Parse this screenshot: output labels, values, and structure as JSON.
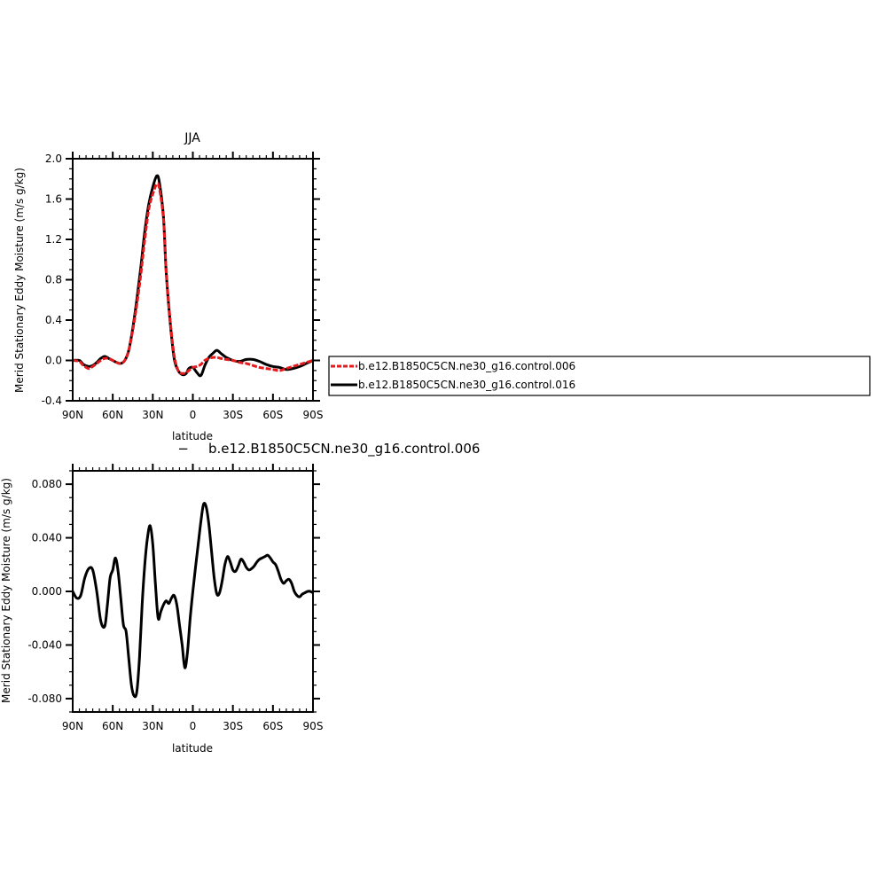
{
  "colors": {
    "red_series": "#e41a1c",
    "black_series": "#000000",
    "background": "#ffffff"
  },
  "chart_data": [
    {
      "type": "line",
      "title": "JJA",
      "xlabel": "latitude",
      "ylabel": "Merid Stationary Eddy Moisture (m/s g/kg)",
      "xlim": [
        90,
        -90
      ],
      "ylim": [
        -0.4,
        2.0
      ],
      "x_ticks": [
        90,
        60,
        30,
        0,
        -30,
        -60,
        -90
      ],
      "x_tick_labels": [
        "90N",
        "60N",
        "30N",
        "0",
        "30S",
        "60S",
        "90S"
      ],
      "y_ticks": [
        -0.4,
        0.0,
        0.4,
        0.8,
        1.2,
        1.6,
        2.0
      ],
      "y_tick_labels": [
        "-0.4",
        "0.0",
        "0.4",
        "0.8",
        "1.2",
        "1.6",
        "2.0"
      ],
      "legend": {
        "placement": "right"
      },
      "series": [
        {
          "name": "b.e12.B1850C5CN.ne30_g16.control.006",
          "color": "#e41a1c",
          "dash": true,
          "x": [
            90,
            85,
            82,
            78,
            75,
            72,
            69,
            66,
            63,
            60,
            57,
            54,
            51,
            48,
            45,
            42,
            39,
            36,
            33,
            30,
            27,
            25,
            22,
            20,
            17,
            14,
            11,
            8,
            5,
            3,
            0,
            -3,
            -6,
            -9,
            -12,
            -15,
            -18,
            -21,
            -25,
            -30,
            -35,
            -40,
            -45,
            -50,
            -55,
            -60,
            -65,
            -70,
            -75,
            -80,
            -85,
            -90
          ],
          "y": [
            0.0,
            -0.01,
            -0.05,
            -0.08,
            -0.06,
            -0.03,
            0.0,
            0.02,
            0.02,
            0.0,
            -0.02,
            -0.03,
            0.0,
            0.1,
            0.3,
            0.55,
            0.85,
            1.2,
            1.5,
            1.65,
            1.75,
            1.7,
            1.4,
            0.9,
            0.4,
            0.05,
            -0.1,
            -0.13,
            -0.12,
            -0.1,
            -0.07,
            -0.06,
            -0.04,
            0.0,
            0.02,
            0.03,
            0.03,
            0.02,
            0.01,
            0.0,
            -0.02,
            -0.03,
            -0.05,
            -0.07,
            -0.08,
            -0.09,
            -0.1,
            -0.08,
            -0.06,
            -0.04,
            -0.02,
            0.0
          ]
        },
        {
          "name": "b.e12.B1850C5CN.ne30_g16.control.016",
          "color": "#000000",
          "dash": false,
          "x": [
            90,
            85,
            82,
            78,
            75,
            72,
            69,
            66,
            63,
            60,
            57,
            54,
            51,
            48,
            45,
            42,
            39,
            36,
            33,
            30,
            27,
            25,
            22,
            20,
            17,
            14,
            11,
            8,
            5,
            3,
            0,
            -3,
            -6,
            -9,
            -12,
            -15,
            -18,
            -21,
            -25,
            -30,
            -35,
            -40,
            -45,
            -50,
            -55,
            -60,
            -65,
            -70,
            -75,
            -80,
            -85,
            -90
          ],
          "y": [
            0.0,
            0.0,
            -0.04,
            -0.06,
            -0.05,
            -0.02,
            0.02,
            0.04,
            0.02,
            0.0,
            -0.02,
            -0.03,
            0.0,
            0.1,
            0.32,
            0.6,
            0.92,
            1.28,
            1.55,
            1.72,
            1.83,
            1.76,
            1.42,
            0.88,
            0.38,
            0.02,
            -0.1,
            -0.14,
            -0.13,
            -0.08,
            -0.07,
            -0.12,
            -0.15,
            -0.05,
            0.03,
            0.07,
            0.1,
            0.07,
            0.03,
            0.0,
            -0.01,
            0.01,
            0.01,
            -0.01,
            -0.04,
            -0.06,
            -0.07,
            -0.09,
            -0.08,
            -0.06,
            -0.03,
            0.0
          ]
        }
      ]
    },
    {
      "type": "line",
      "title": "b.e12.B1850C5CN.ne30_g16.control.006",
      "title_prefix": "−",
      "xlabel": "latitude",
      "ylabel": "Merid Stationary Eddy Moisture (m/s g/kg)",
      "xlim": [
        90,
        -90
      ],
      "ylim": [
        -0.09,
        0.09
      ],
      "x_ticks": [
        90,
        60,
        30,
        0,
        -30,
        -60,
        -90
      ],
      "x_tick_labels": [
        "90N",
        "60N",
        "30N",
        "0",
        "30S",
        "60S",
        "90S"
      ],
      "y_ticks": [
        -0.08,
        -0.04,
        0.0,
        0.04,
        0.08
      ],
      "y_tick_labels": [
        "-0.080",
        "-0.040",
        "0.000",
        "0.040",
        "0.080"
      ],
      "series": [
        {
          "color": "#000000",
          "x": [
            90,
            87,
            84,
            81,
            78,
            75,
            72,
            69,
            66,
            64,
            62,
            60,
            58,
            56,
            54,
            52,
            50,
            48,
            46,
            44,
            42,
            40,
            38,
            36,
            34,
            32,
            30,
            28,
            26,
            24,
            22,
            20,
            18,
            16,
            14,
            12,
            10,
            8,
            6,
            4,
            2,
            0,
            -2,
            -4,
            -6,
            -8,
            -10,
            -12,
            -14,
            -16,
            -18,
            -20,
            -22,
            -24,
            -26,
            -28,
            -30,
            -32,
            -34,
            -36,
            -38,
            -40,
            -42,
            -44,
            -46,
            -48,
            -50,
            -52,
            -54,
            -56,
            -58,
            -60,
            -62,
            -64,
            -66,
            -68,
            -70,
            -72,
            -74,
            -76,
            -78,
            -80,
            -82,
            -84,
            -86,
            -88,
            -90
          ],
          "y": [
            0.0,
            -0.005,
            -0.003,
            0.01,
            0.017,
            0.016,
            0.0,
            -0.022,
            -0.026,
            -0.01,
            0.01,
            0.016,
            0.025,
            0.015,
            -0.005,
            -0.025,
            -0.03,
            -0.05,
            -0.07,
            -0.078,
            -0.075,
            -0.05,
            -0.01,
            0.02,
            0.04,
            0.049,
            0.035,
            0.005,
            -0.02,
            -0.015,
            -0.01,
            -0.007,
            -0.009,
            -0.005,
            -0.003,
            -0.01,
            -0.025,
            -0.04,
            -0.057,
            -0.045,
            -0.02,
            0.0,
            0.018,
            0.035,
            0.052,
            0.065,
            0.063,
            0.05,
            0.03,
            0.01,
            -0.002,
            -0.001,
            0.008,
            0.02,
            0.026,
            0.022,
            0.016,
            0.015,
            0.019,
            0.024,
            0.022,
            0.018,
            0.016,
            0.017,
            0.019,
            0.022,
            0.024,
            0.025,
            0.026,
            0.027,
            0.025,
            0.022,
            0.02,
            0.015,
            0.009,
            0.006,
            0.008,
            0.009,
            0.006,
            0.0,
            -0.003,
            -0.004,
            -0.002,
            -0.001,
            0.0,
            0.0,
            -0.001
          ]
        }
      ]
    }
  ]
}
